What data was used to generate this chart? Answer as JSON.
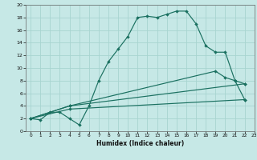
{
  "xlabel": "Humidex (Indice chaleur)",
  "bg_color": "#c6e8e6",
  "grid_color": "#a8d4d0",
  "line_color": "#1a7060",
  "xlim": [
    -0.5,
    23
  ],
  "ylim": [
    0,
    20
  ],
  "line1_x": [
    0,
    1,
    2,
    3,
    4,
    5,
    6,
    7,
    8,
    9,
    10,
    11,
    12,
    13,
    14,
    15,
    16,
    17,
    18,
    19,
    20,
    21,
    22
  ],
  "line1_y": [
    2,
    1.8,
    3,
    3,
    2,
    1,
    4,
    8,
    11,
    13,
    15,
    18,
    18.2,
    18,
    18.5,
    19,
    19,
    17,
    13.5,
    12.5,
    12.5,
    8,
    7.5
  ],
  "line2_x": [
    0,
    4,
    19,
    20,
    21,
    22
  ],
  "line2_y": [
    2,
    4,
    9.5,
    8.5,
    8,
    5
  ],
  "line3_x": [
    0,
    4,
    22
  ],
  "line3_y": [
    2,
    4,
    7.5
  ],
  "line4_x": [
    0,
    4,
    22
  ],
  "line4_y": [
    2,
    3.5,
    5
  ]
}
